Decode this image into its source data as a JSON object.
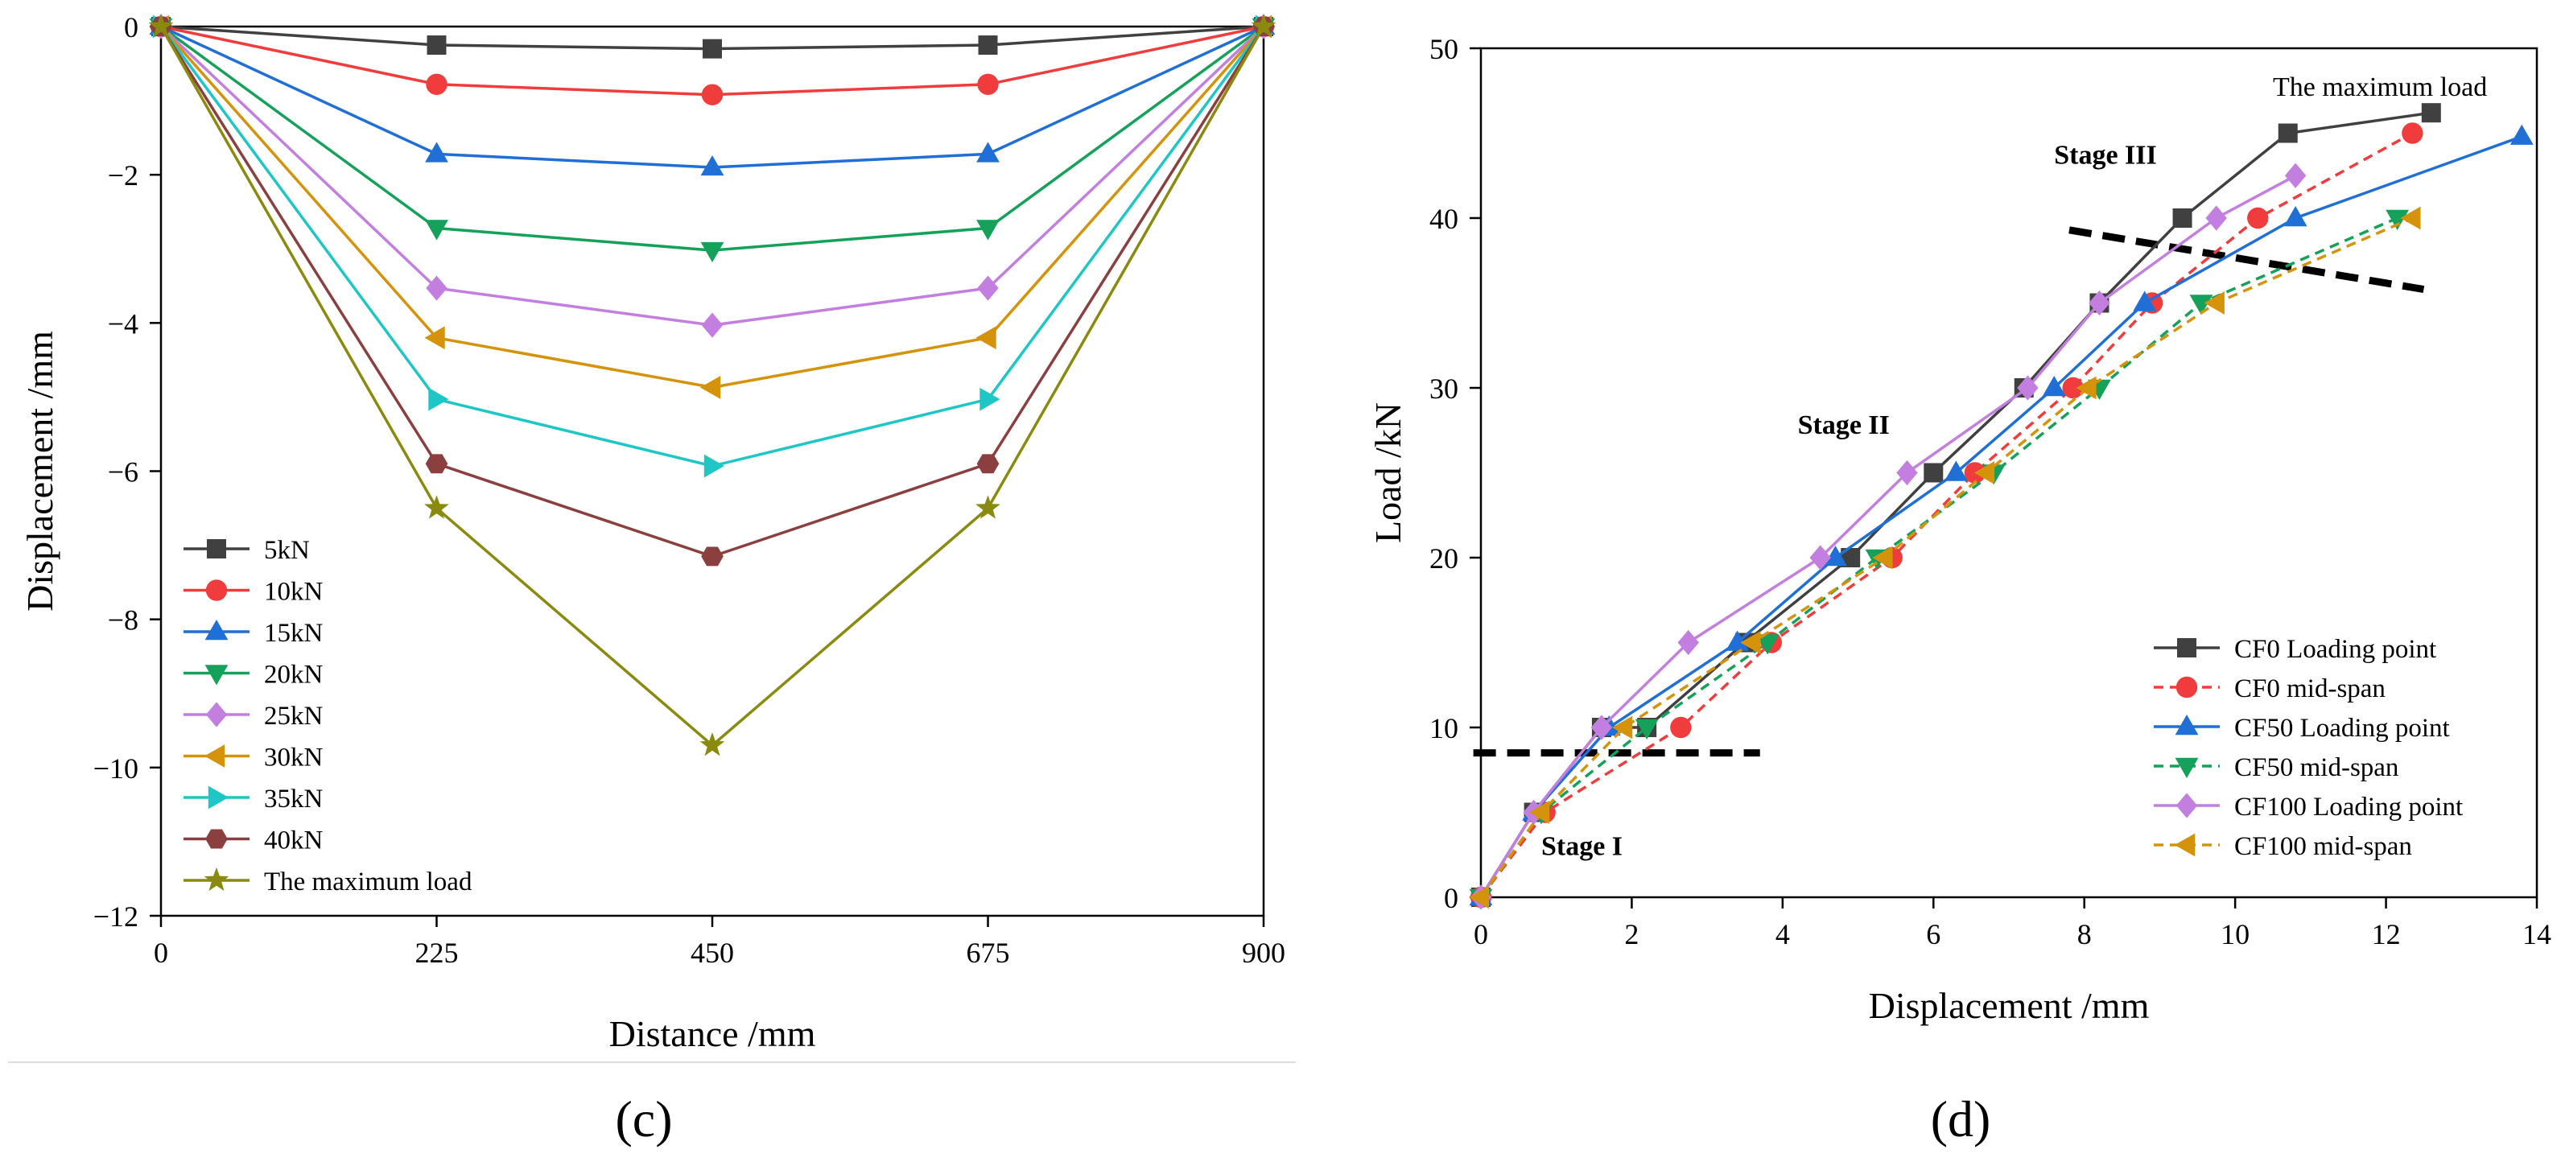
{
  "panel_c_label": "(c)",
  "panel_d_label": "(d)",
  "chart_data": [
    {
      "type": "line",
      "panel": "c",
      "title": "",
      "xlabel": "Distance /mm",
      "ylabel": "Displacement /mm",
      "xlim": [
        0,
        900
      ],
      "ylim": [
        -12,
        0
      ],
      "xticks": [
        0,
        225,
        450,
        675,
        900
      ],
      "yticks": [
        0,
        -2,
        -4,
        -6,
        -8,
        -10,
        -12
      ],
      "grid": false,
      "legend_position": "bottom-left",
      "x": [
        0,
        225,
        450,
        675,
        900
      ],
      "series": [
        {
          "name": "5kN",
          "color": "#404040",
          "marker": "square",
          "values": [
            0,
            -0.25,
            -0.3,
            -0.25,
            0
          ]
        },
        {
          "name": "10kN",
          "color": "#f03c3c",
          "marker": "circle",
          "values": [
            0,
            -0.78,
            -0.92,
            -0.78,
            0
          ]
        },
        {
          "name": "15kN",
          "color": "#1f6fd6",
          "marker": "triangle-up",
          "values": [
            0,
            -1.72,
            -1.9,
            -1.72,
            0
          ]
        },
        {
          "name": "20kN",
          "color": "#15a15a",
          "marker": "triangle-down",
          "values": [
            0,
            -2.72,
            -3.02,
            -2.72,
            0
          ]
        },
        {
          "name": "25kN",
          "color": "#c27fe0",
          "marker": "diamond",
          "values": [
            0,
            -3.53,
            -4.03,
            -3.53,
            0
          ]
        },
        {
          "name": "30kN",
          "color": "#d4930b",
          "marker": "triangle-left",
          "values": [
            0,
            -4.2,
            -4.87,
            -4.2,
            0
          ]
        },
        {
          "name": "35kN",
          "color": "#1fc6c6",
          "marker": "triangle-right",
          "values": [
            0,
            -5.03,
            -5.93,
            -5.03,
            0
          ]
        },
        {
          "name": "40kN",
          "color": "#8b3f3f",
          "marker": "hexagon",
          "values": [
            0,
            -5.9,
            -7.15,
            -5.9,
            0
          ]
        },
        {
          "name": "The maximum load",
          "color": "#8a8a0e",
          "marker": "star",
          "values": [
            0,
            -6.5,
            -9.7,
            -6.5,
            0
          ]
        }
      ]
    },
    {
      "type": "line",
      "panel": "d",
      "title": "",
      "xlabel": "Displacement /mm",
      "ylabel": "Load /kN",
      "xlim": [
        0,
        14
      ],
      "ylim": [
        0,
        50
      ],
      "xticks": [
        0,
        2,
        4,
        6,
        8,
        10,
        12,
        14
      ],
      "yticks": [
        0,
        10,
        20,
        30,
        40,
        50
      ],
      "grid": false,
      "legend_position": "bottom-right",
      "series": [
        {
          "name": "CF0 Loading point",
          "color": "#404040",
          "marker": "square",
          "dash": false,
          "x": [
            0,
            0.7,
            1.6,
            2.2,
            3.5,
            4.9,
            6.0,
            7.2,
            8.2,
            9.3,
            10.7,
            12.6
          ],
          "y": [
            0,
            5,
            10,
            10,
            15,
            20,
            25,
            30,
            35,
            40,
            45,
            46.2
          ]
        },
        {
          "name": "CF0 mid-span",
          "color": "#f03c3c",
          "marker": "circle",
          "dash": true,
          "x": [
            0,
            0.85,
            2.65,
            3.85,
            5.45,
            6.55,
            7.85,
            8.9,
            10.3,
            12.35
          ],
          "y": [
            0,
            5,
            10,
            15,
            20,
            25,
            30,
            35,
            40,
            45
          ]
        },
        {
          "name": "CF50 Loading point",
          "color": "#1f6fd6",
          "marker": "triangle-up",
          "dash": false,
          "x": [
            0,
            0.7,
            1.7,
            3.4,
            4.7,
            6.3,
            7.6,
            8.8,
            10.8,
            13.8
          ],
          "y": [
            0,
            5,
            10,
            15,
            20,
            25,
            30,
            35,
            40,
            44.8
          ]
        },
        {
          "name": "CF50 mid-span",
          "color": "#15a15a",
          "marker": "triangle-down",
          "dash": true,
          "x": [
            0,
            0.8,
            2.2,
            3.8,
            5.25,
            6.8,
            8.2,
            9.55,
            12.15
          ],
          "y": [
            0,
            5,
            10,
            15,
            20,
            25,
            30,
            35,
            40
          ]
        },
        {
          "name": "CF100 Loading point",
          "color": "#c27fe0",
          "marker": "diamond",
          "dash": false,
          "x": [
            0,
            0.7,
            1.6,
            2.75,
            4.5,
            5.65,
            7.25,
            8.2,
            9.75,
            10.8
          ],
          "y": [
            0,
            5,
            10,
            15,
            20,
            25,
            30,
            35,
            40,
            42.5
          ]
        },
        {
          "name": "CF100 mid-span",
          "color": "#d4930b",
          "marker": "triangle-left",
          "dash": true,
          "x": [
            0,
            0.8,
            1.9,
            3.6,
            5.35,
            6.7,
            8.05,
            9.75,
            12.35
          ],
          "y": [
            0,
            5,
            10,
            15,
            20,
            25,
            30,
            35,
            40
          ]
        }
      ],
      "annotations": [
        {
          "text": "Stage I",
          "x": 0.8,
          "y": 2.5
        },
        {
          "text": "Stage II",
          "x": 4.2,
          "y": 27.3
        },
        {
          "text": "Stage III",
          "x": 7.6,
          "y": 43.2
        },
        {
          "text": "The maximum load",
          "x": 10.5,
          "y": 47.2
        }
      ],
      "divider_lines": [
        {
          "x": [
            -0.1,
            3.7
          ],
          "y": [
            8.5,
            8.5
          ]
        },
        {
          "x": [
            7.8,
            12.5
          ],
          "y": [
            39.3,
            35.8
          ]
        }
      ]
    }
  ]
}
